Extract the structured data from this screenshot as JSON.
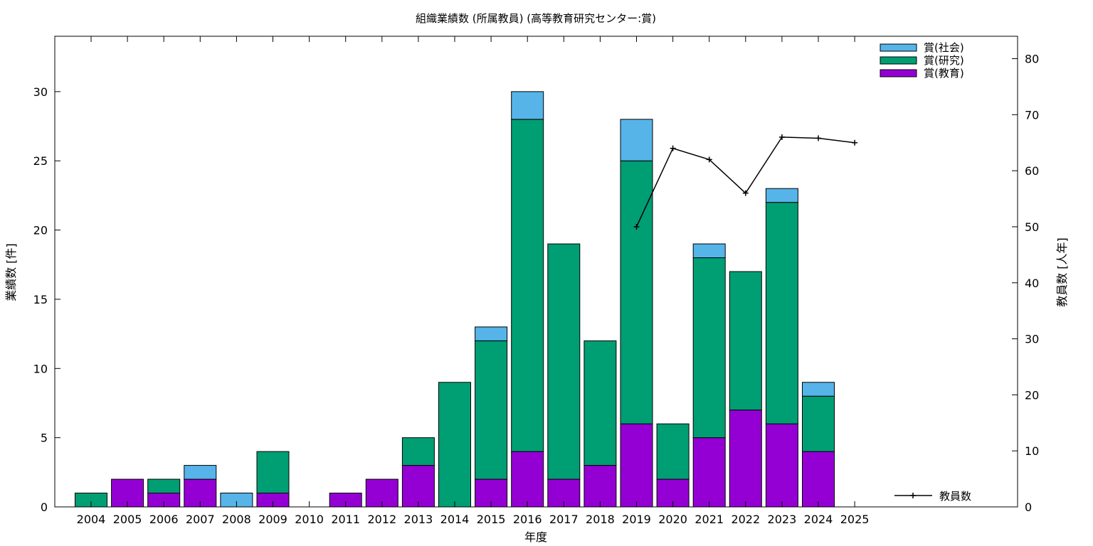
{
  "chart_data": {
    "type": "bar",
    "stacked": true,
    "title": "組織業績数 (所属教員) (高等教育研究センター:賞)",
    "xlabel": "年度",
    "ylabel": "業績数 [件]",
    "y2label": "教員数 [人年]",
    "ylim": [
      0,
      34
    ],
    "y2lim": [
      0,
      84
    ],
    "yticks": [
      0,
      5,
      10,
      15,
      20,
      25,
      30
    ],
    "y2ticks": [
      0,
      10,
      20,
      30,
      40,
      50,
      60,
      70,
      80
    ],
    "grid": false,
    "legend_position": "top-right",
    "categories": [
      "2004",
      "2005",
      "2006",
      "2007",
      "2008",
      "2009",
      "2010",
      "2011",
      "2012",
      "2013",
      "2014",
      "2015",
      "2016",
      "2017",
      "2018",
      "2019",
      "2020",
      "2021",
      "2022",
      "2023",
      "2024",
      "2025"
    ],
    "series": [
      {
        "name": "賞(教育)",
        "color": "#9400d3",
        "values": [
          0,
          2,
          1,
          2,
          0,
          1,
          0,
          1,
          2,
          3,
          0,
          2,
          4,
          2,
          3,
          6,
          2,
          5,
          7,
          6,
          4,
          0
        ]
      },
      {
        "name": "賞(研究)",
        "color": "#009e73",
        "values": [
          1,
          0,
          1,
          0,
          0,
          3,
          0,
          0,
          0,
          2,
          9,
          10,
          24,
          17,
          9,
          19,
          4,
          13,
          10,
          16,
          4,
          0
        ]
      },
      {
        "name": "賞(社会)",
        "color": "#56b4e9",
        "values": [
          0,
          0,
          0,
          1,
          1,
          0,
          0,
          0,
          0,
          0,
          0,
          1,
          2,
          0,
          0,
          3,
          0,
          1,
          0,
          1,
          1,
          0
        ]
      }
    ],
    "line_series": {
      "name": "教員数",
      "color": "#000000",
      "axis": "y2",
      "x": [
        "2019",
        "2020",
        "2021",
        "2022",
        "2023",
        "2024",
        "2025"
      ],
      "values": [
        50,
        64,
        62,
        56,
        66,
        65.8,
        65
      ]
    },
    "legend": {
      "entries": [
        "賞(社会)",
        "賞(研究)",
        "賞(教育)"
      ],
      "line_entry": "教員数"
    }
  }
}
